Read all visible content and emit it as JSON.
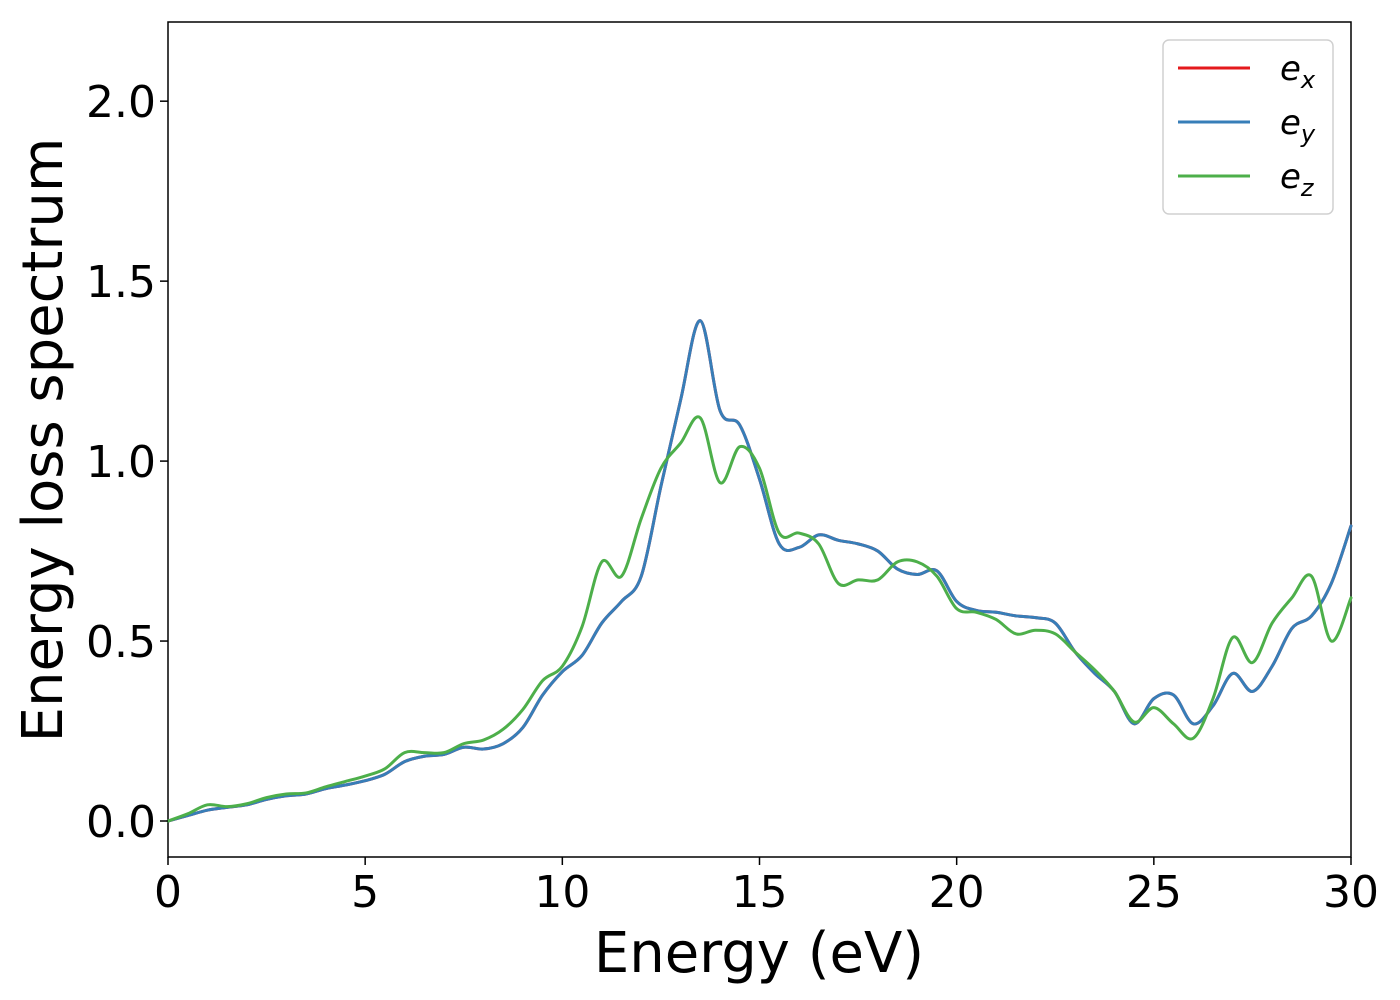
{
  "chart_data": {
    "type": "line",
    "xlabel": "Energy (eV)",
    "ylabel": "Energy loss spectrum",
    "xlim": [
      0,
      30
    ],
    "ylim": [
      -0.1,
      2.22
    ],
    "xticks": [
      0,
      5,
      10,
      15,
      20,
      25,
      30
    ],
    "xtick_labels": [
      "0",
      "5",
      "10",
      "15",
      "20",
      "25",
      "30"
    ],
    "yticks": [
      0.0,
      0.5,
      1.0,
      1.5,
      2.0
    ],
    "ytick_labels": [
      "0.0",
      "0.5",
      "1.0",
      "1.5",
      "2.0"
    ],
    "grid": false,
    "legend_position": "top-right",
    "x": [
      0,
      0.5,
      1,
      1.5,
      2,
      2.5,
      3,
      3.5,
      4,
      4.5,
      5,
      5.5,
      6,
      6.5,
      7,
      7.5,
      8,
      8.5,
      9,
      9.5,
      10,
      10.5,
      11,
      11.5,
      12,
      12.5,
      13,
      13.5,
      14,
      14.5,
      15,
      15.5,
      16,
      16.5,
      17,
      17.5,
      18,
      18.5,
      19,
      19.5,
      20,
      20.5,
      21,
      21.5,
      22,
      22.5,
      23,
      23.5,
      24,
      24.5,
      25,
      25.5,
      26,
      26.5,
      27,
      27.5,
      28,
      28.5,
      29,
      29.5,
      30
    ],
    "series": [
      {
        "name": "e",
        "subscript": "x",
        "color": "#e41a1c",
        "values": [
          0,
          0.015,
          0.03,
          0.038,
          0.045,
          0.06,
          0.07,
          0.075,
          0.09,
          0.1,
          0.112,
          0.13,
          0.165,
          0.18,
          0.185,
          0.205,
          0.2,
          0.215,
          0.26,
          0.35,
          0.415,
          0.46,
          0.55,
          0.61,
          0.68,
          0.93,
          1.17,
          1.39,
          1.14,
          1.1,
          0.95,
          0.77,
          0.76,
          0.795,
          0.78,
          0.77,
          0.75,
          0.7,
          0.685,
          0.695,
          0.61,
          0.585,
          0.58,
          0.57,
          0.565,
          0.55,
          0.47,
          0.41,
          0.36,
          0.27,
          0.34,
          0.35,
          0.27,
          0.32,
          0.41,
          0.36,
          0.43,
          0.535,
          0.57,
          0.66,
          0.82
        ]
      },
      {
        "name": "e",
        "subscript": "y",
        "color": "#377eb8",
        "values": [
          0,
          0.015,
          0.03,
          0.038,
          0.045,
          0.06,
          0.07,
          0.075,
          0.09,
          0.1,
          0.112,
          0.13,
          0.165,
          0.18,
          0.185,
          0.205,
          0.2,
          0.215,
          0.26,
          0.35,
          0.415,
          0.46,
          0.55,
          0.61,
          0.68,
          0.93,
          1.17,
          1.39,
          1.14,
          1.1,
          0.95,
          0.77,
          0.76,
          0.795,
          0.78,
          0.77,
          0.75,
          0.7,
          0.685,
          0.695,
          0.61,
          0.585,
          0.58,
          0.57,
          0.565,
          0.55,
          0.47,
          0.41,
          0.36,
          0.27,
          0.34,
          0.35,
          0.27,
          0.32,
          0.41,
          0.36,
          0.43,
          0.535,
          0.57,
          0.66,
          0.82
        ]
      },
      {
        "name": "e",
        "subscript": "z",
        "color": "#4daf4a",
        "values": [
          0,
          0.02,
          0.045,
          0.04,
          0.048,
          0.065,
          0.075,
          0.078,
          0.095,
          0.11,
          0.125,
          0.145,
          0.19,
          0.19,
          0.19,
          0.215,
          0.225,
          0.255,
          0.31,
          0.39,
          0.43,
          0.54,
          0.72,
          0.68,
          0.84,
          0.98,
          1.05,
          1.12,
          0.94,
          1.04,
          0.98,
          0.8,
          0.8,
          0.77,
          0.66,
          0.67,
          0.67,
          0.72,
          0.72,
          0.68,
          0.59,
          0.58,
          0.56,
          0.52,
          0.53,
          0.52,
          0.47,
          0.42,
          0.36,
          0.275,
          0.315,
          0.27,
          0.23,
          0.34,
          0.51,
          0.44,
          0.55,
          0.62,
          0.68,
          0.5,
          0.62
        ]
      }
    ]
  }
}
